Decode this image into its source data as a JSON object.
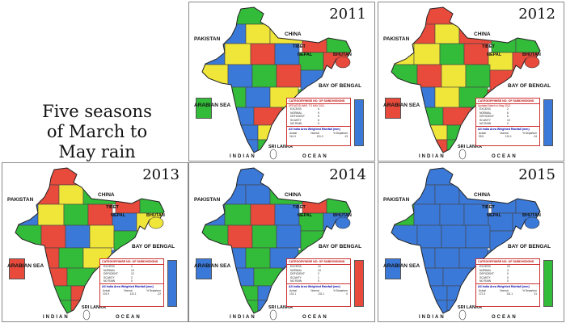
{
  "caption": {
    "line1": "Five seasons",
    "line2": "of March to",
    "line3": "May rain"
  },
  "labels": {
    "pakistan": "PAKISTAN",
    "china": "CHINA",
    "tibet": "TIBET",
    "nepal": "NEPAL",
    "bhutan": "BHUTAN",
    "bay": "BAY OF BENGAL",
    "arabian": "ARABIAN SEA",
    "indian": "INDIAN",
    "ocean": "OCEAN",
    "lanka": "SRI LANKA"
  },
  "legend": {
    "heading": "CATEGORYWISE NO. OF SUBDIVISIONS",
    "categories": [
      "EXCESS",
      "NORMAL",
      "DEFICIENT",
      "SCANTY",
      "NO RAIN"
    ],
    "footer": "All India Area Weighted Rainfall (mm)",
    "footer_cols": [
      "Actual",
      "Normal",
      "% Departure"
    ]
  },
  "colors": {
    "excess": "#3b79d8",
    "normal": "#33bb3a",
    "deficient": "#f0e63a",
    "scanty": "#e84a3c",
    "no_rain": "#ffffff"
  },
  "panels": [
    {
      "year": "2011",
      "subtitle": "UPDATED MAR, TO MAY 2011",
      "counts": [
        "6",
        "9",
        "5",
        "6",
        "0"
      ],
      "actual": "114.3",
      "normal": "131.0",
      "departure": "-13",
      "region_categories": [
        "normal",
        "normal",
        "excess",
        "deficient",
        "deficient",
        "scanty",
        "normal",
        "excess",
        "deficient",
        "scanty",
        "excess",
        "normal",
        "scanty",
        "deficient",
        "excess",
        "normal",
        "scanty",
        "excess",
        "normal",
        "excess",
        "deficient",
        "normal",
        "excess",
        "scanty",
        "normal",
        "excess",
        "deficient",
        "excess",
        "normal"
      ],
      "side_box": "excess",
      "left_box": "normal"
    },
    {
      "year": "2012",
      "subtitle": "Updated March to May 2012",
      "counts": [
        "2",
        "8",
        "6",
        "10",
        "0"
      ],
      "actual": "99.5",
      "normal": "131.1",
      "departure": "-24",
      "region_categories": [
        "scanty",
        "normal",
        "scanty",
        "deficient",
        "scanty",
        "normal",
        "normal",
        "deficient",
        "deficient",
        "normal",
        "scanty",
        "deficient",
        "scanty",
        "normal",
        "scanty",
        "deficient",
        "normal",
        "scanty",
        "excess",
        "deficient",
        "normal",
        "scanty",
        "normal",
        "scanty",
        "excess",
        "deficient",
        "normal",
        "scanty",
        "normal"
      ],
      "side_box": "excess",
      "left_box": "scanty"
    },
    {
      "year": "2013",
      "subtitle": "",
      "counts": [
        "2",
        "10",
        "12",
        "2",
        "0"
      ],
      "actual": "101.9",
      "normal": "131.1",
      "departure": "-22",
      "region_categories": [
        "scanty",
        "normal",
        "scanty",
        "deficient",
        "normal",
        "scanty",
        "normal",
        "excess",
        "deficient",
        "normal",
        "scanty",
        "excess",
        "deficient",
        "normal",
        "scanty",
        "excess",
        "deficient",
        "normal",
        "scanty",
        "normal",
        "deficient",
        "excess",
        "scanty",
        "normal",
        "deficient",
        "normal",
        "scanty",
        "normal",
        "scanty"
      ],
      "side_box": "excess",
      "left_box": "scanty"
    },
    {
      "year": "2014",
      "subtitle": "",
      "counts": [
        "10",
        "13",
        "2",
        "1",
        "0"
      ],
      "actual": "131.1",
      "normal": "131.1",
      "departure": "0",
      "region_categories": [
        "excess",
        "normal",
        "excess",
        "excess",
        "normal",
        "scanty",
        "normal",
        "excess",
        "normal",
        "scanty",
        "excess",
        "normal",
        "excess",
        "normal",
        "scanty",
        "normal",
        "excess",
        "normal",
        "excess",
        "normal",
        "excess",
        "normal",
        "excess",
        "normal",
        "excess",
        "normal",
        "excess",
        "normal",
        "excess"
      ],
      "side_box": "scanty",
      "left_box": "excess"
    },
    {
      "year": "2015",
      "subtitle": "",
      "counts": [
        "23",
        "3",
        "0",
        "0",
        "0"
      ],
      "actual": "172.3",
      "normal": "131.1",
      "departure": "31",
      "region_categories": [
        "excess",
        "excess",
        "excess",
        "excess",
        "excess",
        "excess",
        "excess",
        "normal",
        "excess",
        "excess",
        "excess",
        "excess",
        "excess",
        "excess",
        "excess",
        "excess",
        "excess",
        "excess",
        "excess",
        "excess",
        "excess",
        "excess",
        "excess",
        "excess",
        "excess",
        "excess",
        "excess",
        "excess",
        "excess"
      ],
      "side_box": "normal",
      "left_box": "excess"
    }
  ]
}
